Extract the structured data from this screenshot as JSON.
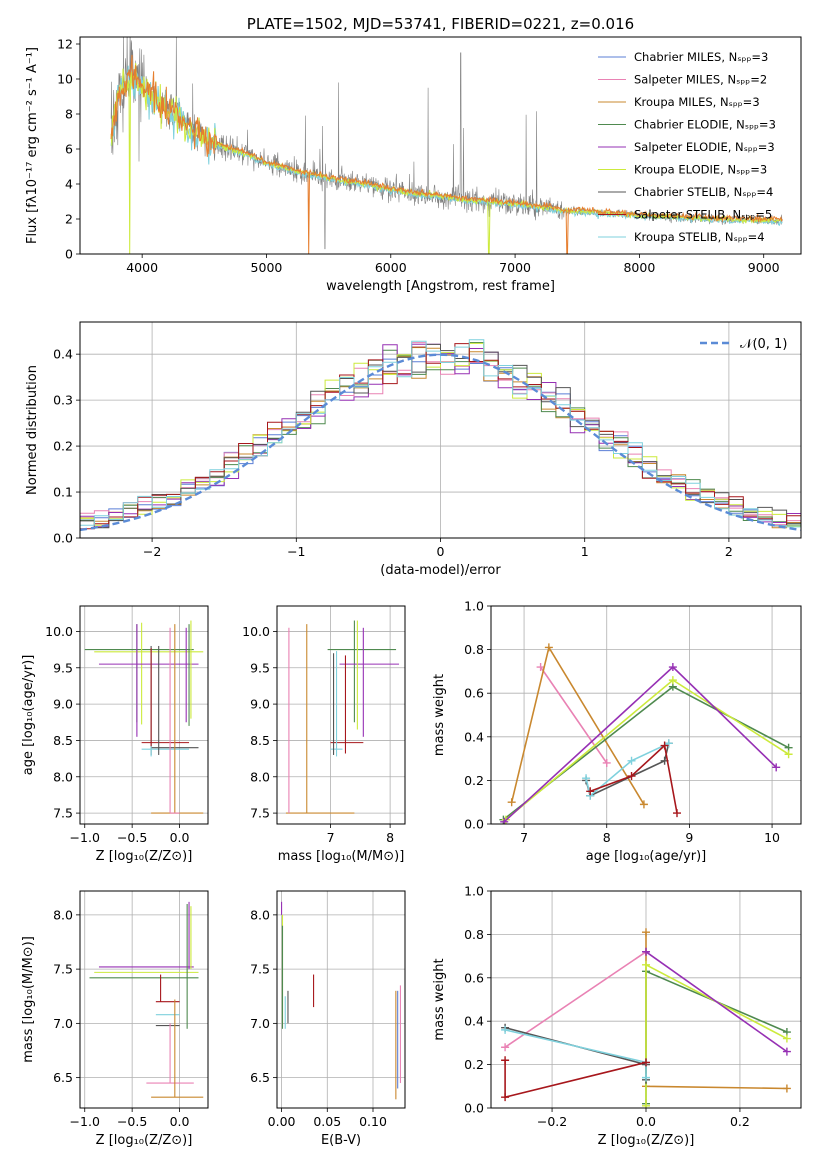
{
  "colors": {
    "chabrier_miles": "#5b7fd6",
    "salpeter_miles": "#e982b4",
    "kroupa_miles": "#c9882f",
    "chabrier_elodie": "#4f8a4f",
    "salpeter_elodie": "#9630b4",
    "kroupa_elodie": "#ccea3c",
    "chabrier_stelib": "#555555",
    "salpeter_stelib": "#a7171c",
    "kroupa_stelib": "#7fd1dd",
    "data": "#808080",
    "normal": "#5b8bd6",
    "orange": "#e67e2e"
  },
  "chart_data": [
    {
      "id": "spectrum",
      "type": "line",
      "title": "PLATE=1502, MJD=53741, FIBERID=0221, z=0.016",
      "xlabel": "wavelength [Angstrom, rest frame]",
      "ylabel": "Flux [fλ10⁻¹⁷ erg cm⁻² s⁻¹ A⁻¹]",
      "xlim": [
        3500,
        9300
      ],
      "ylim": [
        0,
        12.4
      ],
      "xticks": [
        4000,
        5000,
        6000,
        7000,
        8000,
        9000
      ],
      "yticks": [
        0,
        2,
        4,
        6,
        8,
        10,
        12
      ],
      "grid": false,
      "legend_position": "top-right",
      "legend": [
        "Chabrier MILES, Nₛₚₚ=3",
        "Salpeter MILES, Nₛₚₚ=2",
        "Kroupa MILES, Nₛₚₚ=3",
        "Chabrier ELODIE, Nₛₚₚ=3",
        "Salpeter ELODIE, Nₛₚₚ=3",
        "Kroupa ELODIE, Nₛₚₚ=3",
        "Chabrier STELIB, Nₛₚₚ=4",
        "Salpeter STELIB, Nₛₚₚ=5",
        "Kroupa STELIB, Nₛₚₚ=4"
      ],
      "continuum_model": [
        [
          3750,
          6.3
        ],
        [
          3800,
          8.8
        ],
        [
          3900,
          10.2
        ],
        [
          4000,
          9.6
        ],
        [
          4100,
          8.9
        ],
        [
          4200,
          8.3
        ],
        [
          4300,
          7.8
        ],
        [
          4400,
          7.1
        ],
        [
          4500,
          6.6
        ],
        [
          4600,
          6.3
        ],
        [
          4700,
          6.0
        ],
        [
          4800,
          5.8
        ],
        [
          4900,
          5.5
        ],
        [
          5000,
          5.2
        ],
        [
          5200,
          4.8
        ],
        [
          5400,
          4.5
        ],
        [
          5600,
          4.2
        ],
        [
          5800,
          4.0
        ],
        [
          6000,
          3.7
        ],
        [
          6200,
          3.45
        ],
        [
          6400,
          3.3
        ],
        [
          6600,
          3.1
        ],
        [
          6800,
          3.0
        ],
        [
          7000,
          2.85
        ],
        [
          7200,
          2.7
        ],
        [
          7400,
          2.5
        ],
        [
          7600,
          2.4
        ],
        [
          7800,
          2.3
        ],
        [
          8000,
          2.2
        ],
        [
          8300,
          2.1
        ],
        [
          8600,
          2.0
        ],
        [
          8900,
          1.95
        ],
        [
          9100,
          1.9
        ]
      ]
    },
    {
      "id": "residuals",
      "type": "step",
      "xlabel": "(data-model)/error",
      "ylabel": "Normed distribution",
      "xlim": [
        -2.5,
        2.5
      ],
      "ylim": [
        0,
        0.47
      ],
      "xticks": [
        -2,
        -1,
        0,
        1,
        2
      ],
      "yticks": [
        0.0,
        0.1,
        0.2,
        0.3,
        0.4
      ],
      "grid": true,
      "legend_position": "top-right",
      "legend": [
        "𝒩(0, 1)"
      ]
    },
    {
      "id": "age_vs_Z",
      "type": "errorbar",
      "xlabel": "Z [log₁₀(Z/Z⊙)]",
      "ylabel": "age  [log₁₀(age/yr)]",
      "xlim": [
        -1.05,
        0.3
      ],
      "ylim": [
        7.35,
        10.35
      ],
      "xticks": [
        -1.0,
        -0.5,
        0.0
      ],
      "yticks": [
        7.5,
        8.0,
        8.5,
        9.0,
        9.5,
        10.0
      ],
      "grid": true,
      "points": [
        {
          "s": "chabrier_elodie",
          "x": -0.45,
          "xerr": [
            0.55,
            0.6
          ],
          "y": 9.75,
          "yerr": [
            1.0,
            0.35
          ]
        },
        {
          "s": "kroupa_elodie",
          "x": -0.4,
          "xerr": [
            0.5,
            0.65
          ],
          "y": 9.72,
          "yerr": [
            1.0,
            0.4
          ]
        },
        {
          "s": "salpeter_elodie",
          "x": -0.45,
          "xerr": [
            0.4,
            0.65
          ],
          "y": 9.55,
          "yerr": [
            1.0,
            0.55
          ]
        },
        {
          "s": "chabrier_stelib",
          "x": -0.3,
          "xerr": [
            0.0,
            0.5
          ],
          "y": 8.4,
          "yerr": [
            0.1,
            1.4
          ]
        },
        {
          "s": "kroupa_stelib",
          "x": -0.3,
          "xerr": [
            0.1,
            0.4
          ],
          "y": 8.38,
          "yerr": [
            0.1,
            1.35
          ]
        },
        {
          "s": "salpeter_stelib",
          "x": -0.3,
          "xerr": [
            0.1,
            0.4
          ],
          "y": 8.47,
          "yerr": [
            0.05,
            1.3
          ]
        },
        {
          "s": "kroupa_miles",
          "x": -0.05,
          "xerr": [
            0.25,
            0.3
          ],
          "y": 7.5,
          "yerr": [
            0.0,
            2.6
          ]
        },
        {
          "s": "salpeter_miles",
          "x": -0.1,
          "xerr": [
            0.0,
            0.1
          ],
          "y": 7.5,
          "yerr": [
            0.0,
            2.55
          ]
        },
        {
          "s": "chabrier_elodie",
          "x": 0.1,
          "xerr": [
            0.0,
            0.0
          ],
          "y": 8.7,
          "yerr": [
            0.0,
            1.4
          ]
        },
        {
          "s": "kroupa_elodie",
          "x": 0.12,
          "xerr": [
            0.0,
            0.0
          ],
          "y": 8.8,
          "yerr": [
            0.0,
            1.35
          ]
        },
        {
          "s": "salpeter_elodie",
          "x": 0.07,
          "xerr": [
            0.0,
            0.0
          ],
          "y": 8.75,
          "yerr": [
            0.0,
            1.3
          ]
        },
        {
          "s": "chabrier_stelib",
          "x": -0.22,
          "xerr": [
            0.0,
            0.0
          ],
          "y": 8.3,
          "yerr": [
            0.0,
            1.5
          ]
        }
      ]
    },
    {
      "id": "age_vs_mass",
      "type": "errorbar",
      "xlabel": "mass [log₁₀(M/M⊙)]",
      "xlim": [
        6.1,
        8.25
      ],
      "ylim": [
        7.35,
        10.35
      ],
      "xticks": [
        7,
        8
      ],
      "yticks": [
        7.5,
        8.0,
        8.5,
        9.0,
        9.5,
        10.0
      ],
      "grid": true,
      "points": [
        {
          "s": "chabrier_elodie",
          "x": 7.4,
          "xerr": [
            0.45,
            0.7
          ],
          "y": 9.75,
          "yerr": [
            1.0,
            0.4
          ]
        },
        {
          "s": "salpeter_elodie",
          "x": 7.55,
          "xerr": [
            0.4,
            0.6
          ],
          "y": 9.55,
          "yerr": [
            1.0,
            0.5
          ]
        },
        {
          "s": "kroupa_elodie",
          "x": 7.45,
          "xerr": [
            0.0,
            0.0
          ],
          "y": 9.3,
          "yerr": [
            0.65,
            0.85
          ]
        },
        {
          "s": "salpeter_stelib",
          "x": 7.25,
          "xerr": [
            0.25,
            0.3
          ],
          "y": 8.47,
          "yerr": [
            0.15,
            1.2
          ]
        },
        {
          "s": "kroupa_stelib",
          "x": 7.1,
          "xerr": [
            0.1,
            0.1
          ],
          "y": 8.38,
          "yerr": [
            0.1,
            1.35
          ]
        },
        {
          "s": "chabrier_stelib",
          "x": 7.05,
          "xerr": [
            0.0,
            0.0
          ],
          "y": 8.4,
          "yerr": [
            0.1,
            1.3
          ]
        },
        {
          "s": "kroupa_miles",
          "x": 6.6,
          "xerr": [
            0.35,
            0.8
          ],
          "y": 7.5,
          "yerr": [
            0.0,
            2.6
          ]
        },
        {
          "s": "salpeter_miles",
          "x": 6.3,
          "xerr": [
            0.0,
            0.0
          ],
          "y": 7.5,
          "yerr": [
            0.0,
            2.55
          ]
        }
      ]
    },
    {
      "id": "weight_vs_age",
      "type": "line",
      "xlabel": "age  [log₁₀(age/yr)]",
      "ylabel": "mass weight",
      "xlim": [
        6.6,
        10.35
      ],
      "ylim": [
        0.0,
        1.0
      ],
      "xticks": [
        7,
        8,
        9,
        10
      ],
      "yticks": [
        0.0,
        0.2,
        0.4,
        0.6,
        0.8,
        1.0
      ],
      "grid": true,
      "series": [
        {
          "s": "salpeter_miles",
          "x": [
            7.2,
            8.0
          ],
          "y": [
            0.72,
            0.28
          ]
        },
        {
          "s": "kroupa_miles",
          "x": [
            6.85,
            7.3,
            8.45
          ],
          "y": [
            0.1,
            0.81,
            0.09
          ]
        },
        {
          "s": "chabrier_elodie",
          "x": [
            6.75,
            8.8,
            10.2
          ],
          "y": [
            0.02,
            0.63,
            0.35
          ]
        },
        {
          "s": "kroupa_elodie",
          "x": [
            6.78,
            8.8,
            10.2
          ],
          "y": [
            0.02,
            0.66,
            0.32
          ]
        },
        {
          "s": "salpeter_elodie",
          "x": [
            6.76,
            8.8,
            10.05
          ],
          "y": [
            0.01,
            0.72,
            0.26
          ]
        },
        {
          "s": "chabrier_stelib",
          "x": [
            7.75,
            7.8,
            8.7,
            8.75
          ],
          "y": [
            0.2,
            0.13,
            0.29,
            0.37
          ]
        },
        {
          "s": "kroupa_stelib",
          "x": [
            7.75,
            7.8,
            8.3,
            8.75
          ],
          "y": [
            0.21,
            0.13,
            0.29,
            0.37
          ]
        },
        {
          "s": "salpeter_stelib",
          "x": [
            7.8,
            8.3,
            8.7,
            8.85
          ],
          "y": [
            0.15,
            0.22,
            0.36,
            0.05
          ]
        }
      ]
    },
    {
      "id": "mass_vs_Z",
      "type": "errorbar",
      "xlabel": "Z [log₁₀(Z/Z⊙)]",
      "ylabel": "mass [log₁₀(M/M⊙)]",
      "xlim": [
        -1.05,
        0.3
      ],
      "ylim": [
        6.22,
        8.22
      ],
      "xticks": [
        -1.0,
        -0.5,
        0.0
      ],
      "yticks": [
        6.5,
        7.0,
        7.5,
        8.0
      ],
      "grid": true,
      "points": [
        {
          "s": "chabrier_elodie",
          "x": -0.4,
          "xerr": [
            0.55,
            0.6
          ],
          "y": 7.42,
          "yerr": [
            0.0,
            0.0
          ]
        },
        {
          "s": "kroupa_elodie",
          "x": -0.35,
          "xerr": [
            0.55,
            0.55
          ],
          "y": 7.47,
          "yerr": [
            0.0,
            0.0
          ]
        },
        {
          "s": "salpeter_elodie",
          "x": -0.35,
          "xerr": [
            0.5,
            0.5
          ],
          "y": 7.52,
          "yerr": [
            0.0,
            0.0
          ]
        },
        {
          "s": "salpeter_stelib",
          "x": -0.2,
          "xerr": [
            0.0,
            0.0
          ],
          "y": 7.2,
          "yerr": [
            0.0,
            0.25
          ]
        },
        {
          "s": "salpeter_stelib",
          "x": -0.15,
          "xerr": [
            0.1,
            0.15
          ],
          "y": 7.2,
          "yerr": [
            0.0,
            0.0
          ]
        },
        {
          "s": "kroupa_stelib",
          "x": -0.15,
          "xerr": [
            0.1,
            0.15
          ],
          "y": 7.08,
          "yerr": [
            0.0,
            0.0
          ]
        },
        {
          "s": "chabrier_stelib",
          "x": -0.15,
          "xerr": [
            0.1,
            0.15
          ],
          "y": 6.98,
          "yerr": [
            0.0,
            0.0
          ]
        },
        {
          "s": "salpeter_miles",
          "x": -0.1,
          "xerr": [
            0.25,
            0.25
          ],
          "y": 6.45,
          "yerr": [
            0.0,
            0.55
          ]
        },
        {
          "s": "kroupa_miles",
          "x": -0.05,
          "xerr": [
            0.25,
            0.3
          ],
          "y": 6.32,
          "yerr": [
            0.0,
            0.9
          ]
        },
        {
          "s": "chabrier_elodie",
          "x": 0.08,
          "xerr": [
            0.0,
            0.0
          ],
          "y": 7.4,
          "yerr": [
            0.45,
            0.7
          ]
        },
        {
          "s": "salpeter_elodie",
          "x": 0.1,
          "xerr": [
            0.0,
            0.0
          ],
          "y": 7.5,
          "yerr": [
            0.0,
            0.62
          ]
        },
        {
          "s": "kroupa_elodie",
          "x": 0.12,
          "xerr": [
            0.0,
            0.0
          ],
          "y": 7.5,
          "yerr": [
            0.0,
            0.58
          ]
        }
      ]
    },
    {
      "id": "mass_vs_ebv",
      "type": "errorbar",
      "xlabel": "E(B-V)",
      "xlim": [
        -0.005,
        0.135
      ],
      "ylim": [
        6.22,
        8.22
      ],
      "xticks": [
        0.0,
        0.05,
        0.1
      ],
      "yticks": [
        6.5,
        7.0,
        7.5,
        8.0
      ],
      "grid": true,
      "points": [
        {
          "s": "salpeter_elodie",
          "x": 0.0,
          "xerr": [
            0.0,
            0.0
          ],
          "y": 8.0,
          "yerr": [
            0.0,
            0.12
          ]
        },
        {
          "s": "kroupa_elodie",
          "x": 0.001,
          "xerr": [
            0.0,
            0.0
          ],
          "y": 7.5,
          "yerr": [
            0.5,
            0.5
          ]
        },
        {
          "s": "chabrier_elodie",
          "x": 0.001,
          "xerr": [
            0.0,
            0.0
          ],
          "y": 7.4,
          "yerr": [
            0.45,
            0.5
          ]
        },
        {
          "s": "kroupa_stelib",
          "x": 0.004,
          "xerr": [
            0.0,
            0.0
          ],
          "y": 7.05,
          "yerr": [
            0.1,
            0.2
          ]
        },
        {
          "s": "chabrier_stelib",
          "x": 0.007,
          "xerr": [
            0.0,
            0.0
          ],
          "y": 7.1,
          "yerr": [
            0.1,
            0.2
          ]
        },
        {
          "s": "salpeter_stelib",
          "x": 0.035,
          "xerr": [
            0.0,
            0.0
          ],
          "y": 7.3,
          "yerr": [
            0.15,
            0.15
          ]
        },
        {
          "s": "kroupa_miles",
          "x": 0.125,
          "xerr": [
            0.0,
            0.0
          ],
          "y": 6.8,
          "yerr": [
            0.5,
            0.5
          ]
        },
        {
          "s": "chabrier_miles",
          "x": 0.127,
          "xerr": [
            0.0,
            0.0
          ],
          "y": 6.9,
          "yerr": [
            0.5,
            0.4
          ]
        },
        {
          "s": "salpeter_miles",
          "x": 0.13,
          "xerr": [
            0.0,
            0.0
          ],
          "y": 6.9,
          "yerr": [
            0.45,
            0.45
          ]
        }
      ]
    },
    {
      "id": "weight_vs_Z",
      "type": "line",
      "xlabel": "Z [log₁₀(Z/Z⊙)]",
      "ylabel": "mass weight",
      "xlim": [
        -0.33,
        0.33
      ],
      "ylim": [
        0.0,
        1.0
      ],
      "xticks": [
        -0.2,
        0.0,
        0.2
      ],
      "yticks": [
        0.0,
        0.2,
        0.4,
        0.6,
        0.8,
        1.0
      ],
      "grid": true,
      "series": [
        {
          "s": "salpeter_miles",
          "x": [
            -0.3,
            0.0
          ],
          "y": [
            0.28,
            0.72
          ]
        },
        {
          "s": "kroupa_miles",
          "x": [
            0.0,
            0.0,
            0.3
          ],
          "y": [
            0.81,
            0.1,
            0.09
          ]
        },
        {
          "s": "chabrier_elodie",
          "x": [
            0.0,
            0.0,
            0.3
          ],
          "y": [
            0.02,
            0.63,
            0.35
          ]
        },
        {
          "s": "kroupa_elodie",
          "x": [
            0.0,
            0.0,
            0.3
          ],
          "y": [
            0.01,
            0.66,
            0.32
          ]
        },
        {
          "s": "salpeter_elodie",
          "x": [
            0.0,
            0.3
          ],
          "y": [
            0.72,
            0.26
          ]
        },
        {
          "s": "chabrier_stelib",
          "x": [
            -0.3,
            0.0,
            0.0
          ],
          "y": [
            0.37,
            0.2,
            0.13
          ]
        },
        {
          "s": "kroupa_stelib",
          "x": [
            -0.3,
            0.0,
            0.0
          ],
          "y": [
            0.36,
            0.21,
            0.14
          ]
        },
        {
          "s": "salpeter_stelib",
          "x": [
            -0.3,
            -0.3,
            0.0
          ],
          "y": [
            0.22,
            0.05,
            0.21
          ]
        }
      ]
    }
  ]
}
